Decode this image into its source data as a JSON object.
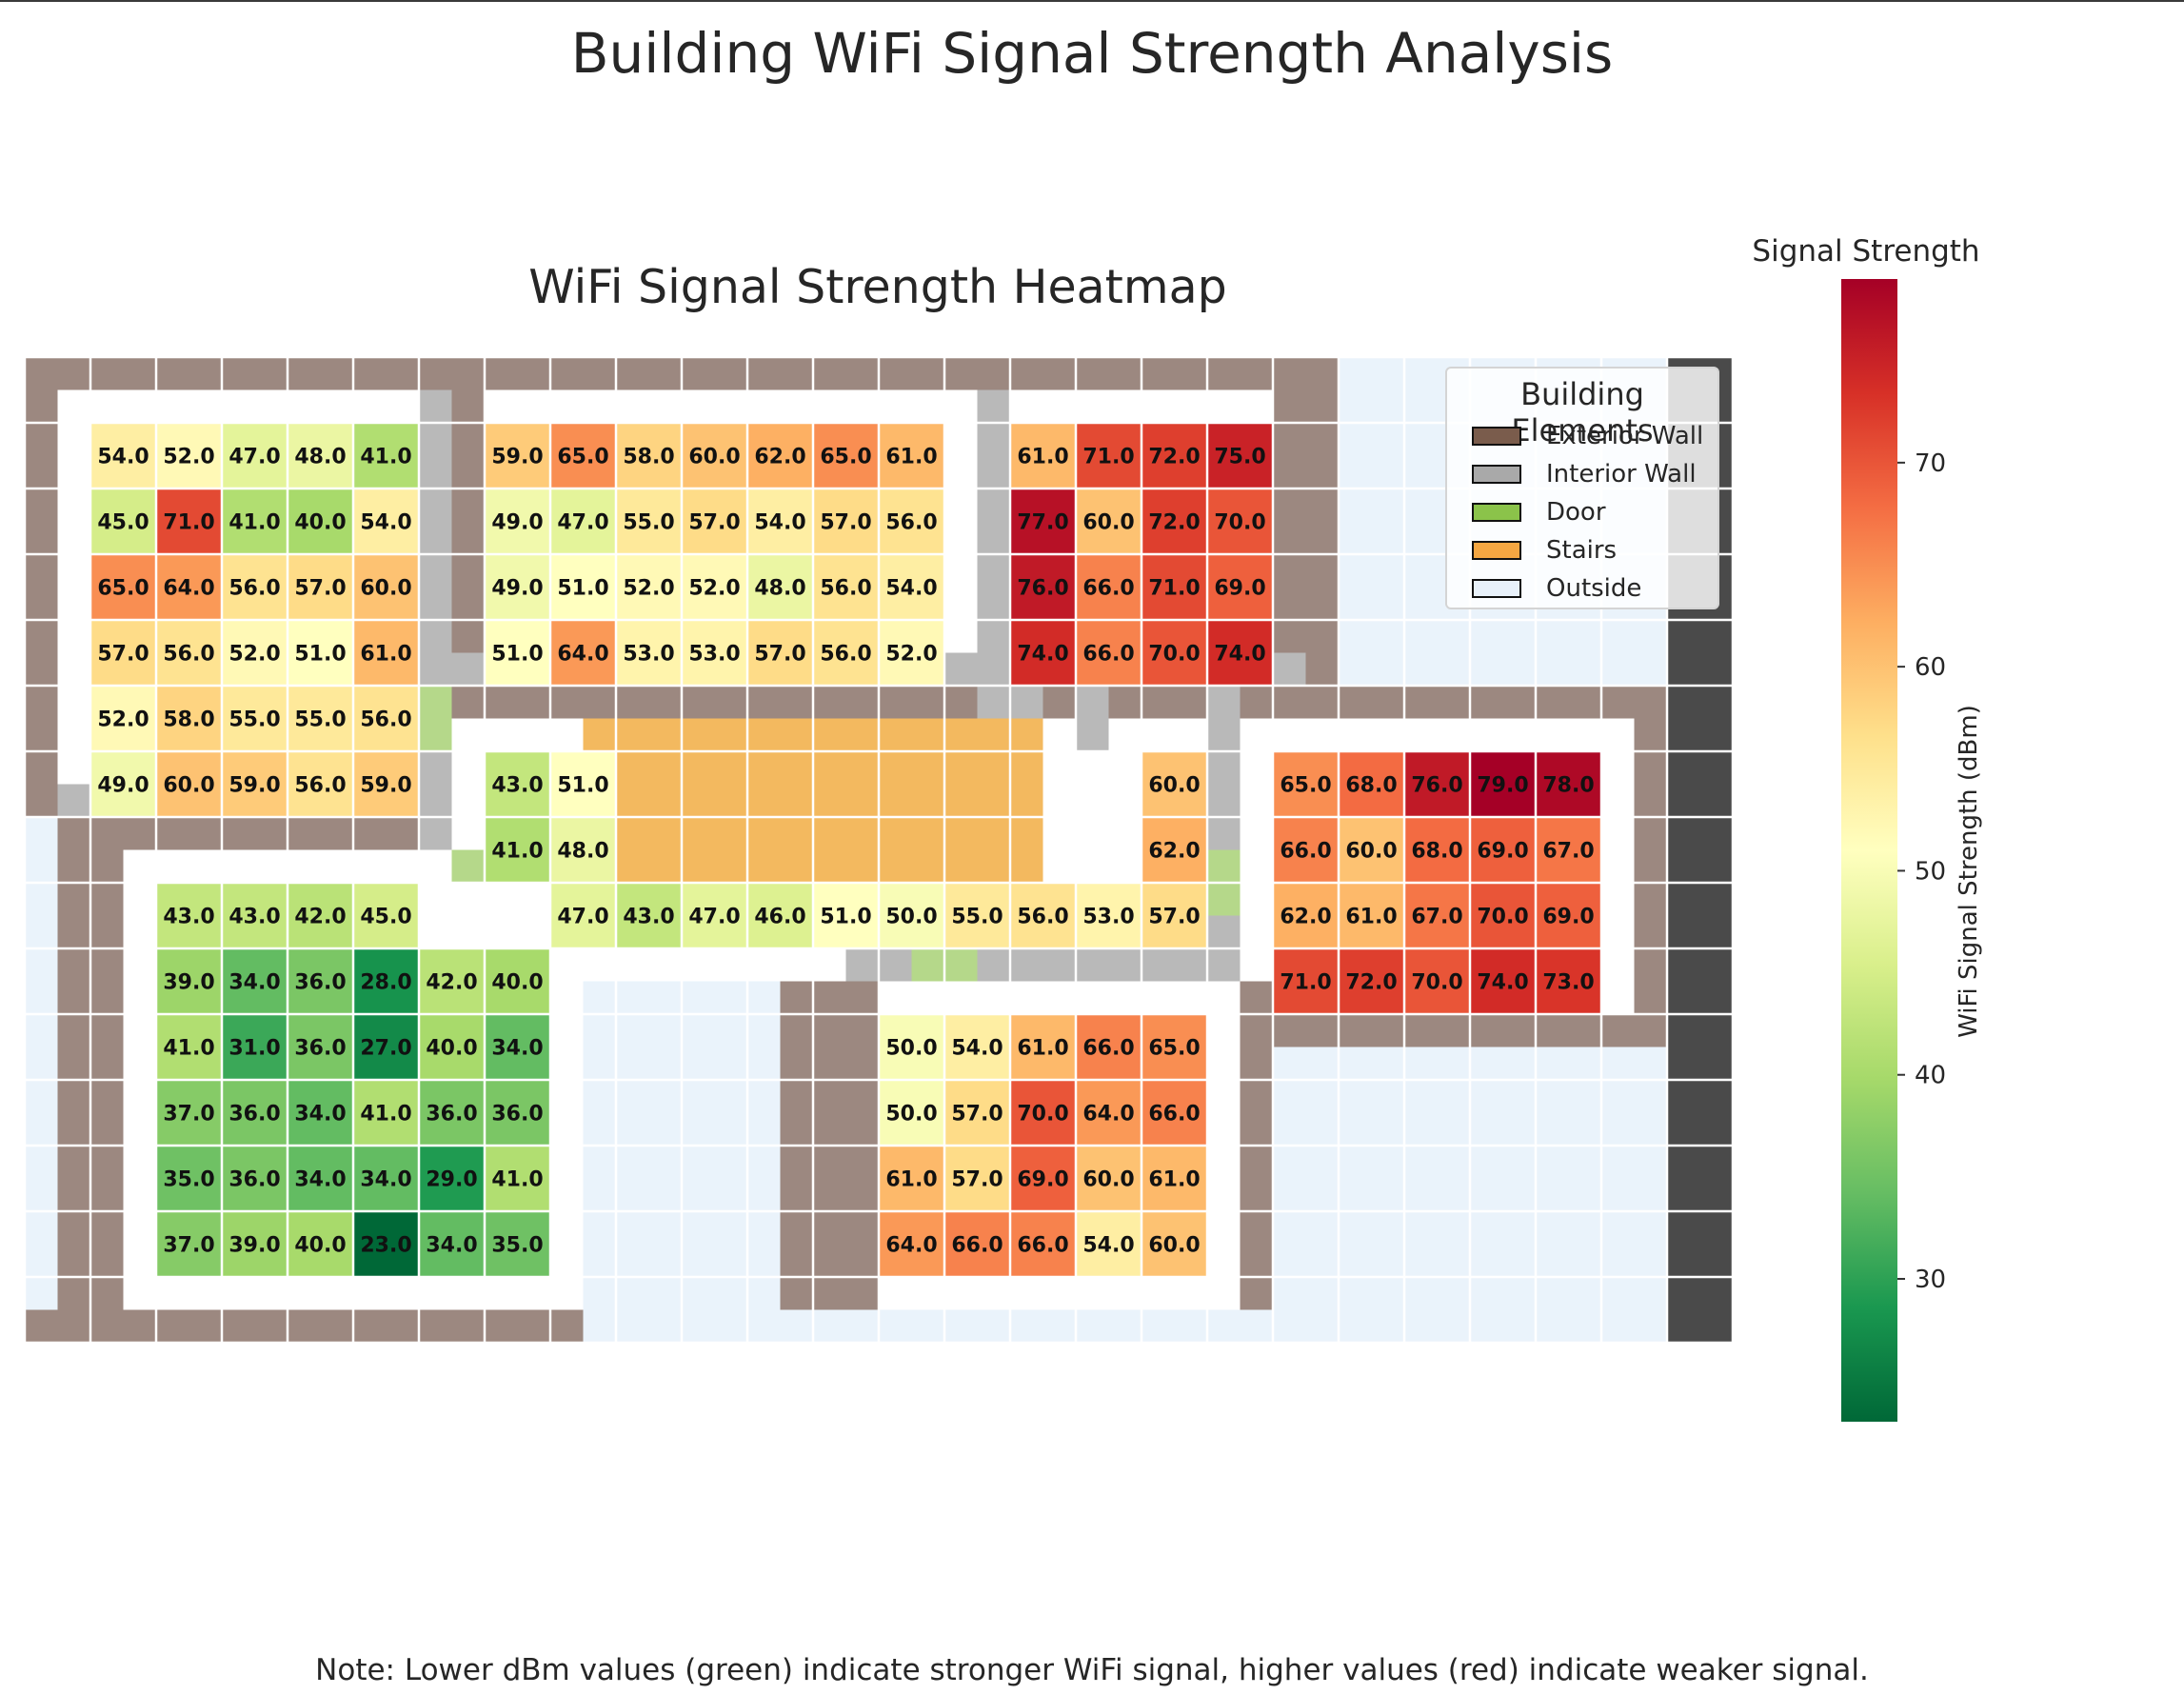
{
  "main_title": "Building WiFi Signal Strength Analysis",
  "footnote": "Note: Lower dBm values (green) indicate stronger WiFi signal, higher values (red) indicate weaker signal.",
  "colors": {
    "exterior_wall": "#9c8880",
    "exterior_wall_dark": "#4a4a4a",
    "interior_wall": "#b9b9b9",
    "door": "#b5d88a",
    "stairs": "#f3b95f",
    "outside": "#eaf3fb",
    "floor": "#ffffff"
  },
  "chart_data": {
    "type": "heatmap",
    "title": "WiFi Signal Strength Heatmap",
    "colormap": "RdYlGn_r",
    "vmin": 23,
    "vmax": 79,
    "colorbar": {
      "title": "Signal Strength",
      "label": "WiFi Signal Strength (dBm)",
      "ticks": [
        30,
        40,
        50,
        60,
        70
      ]
    },
    "legend": {
      "title": "Building Elements",
      "placement": "top-right",
      "items": [
        {
          "label": "Exterior Wall",
          "color": "#7a5c4c"
        },
        {
          "label": "Interior Wall",
          "color": "#a9a9a9"
        },
        {
          "label": "Door",
          "color": "#8bc34a"
        },
        {
          "label": "Stairs",
          "color": "#f5a742"
        },
        {
          "label": "Outside",
          "color": "#e8f1fa"
        }
      ]
    },
    "rooms": [
      {
        "name": "room-a",
        "col_start": 1,
        "row_start": 1,
        "values": [
          [
            54,
            52,
            47,
            48,
            41
          ],
          [
            45,
            71,
            41,
            40,
            54
          ],
          [
            65,
            64,
            56,
            57,
            60
          ],
          [
            57,
            56,
            52,
            51,
            61
          ],
          [
            52,
            58,
            55,
            55,
            56
          ],
          [
            49,
            60,
            59,
            56,
            59
          ]
        ]
      },
      {
        "name": "room-b",
        "col_start": 7,
        "row_start": 1,
        "values": [
          [
            59,
            65,
            58,
            60,
            62,
            65,
            61
          ],
          [
            49,
            47,
            55,
            57,
            54,
            57,
            56
          ],
          [
            49,
            51,
            52,
            52,
            48,
            56,
            54
          ],
          [
            51,
            64,
            53,
            53,
            57,
            56,
            52
          ]
        ]
      },
      {
        "name": "room-c",
        "col_start": 15,
        "row_start": 1,
        "values": [
          [
            61,
            71,
            72,
            75
          ],
          [
            77,
            60,
            72,
            70
          ],
          [
            76,
            66,
            71,
            69
          ],
          [
            74,
            66,
            70,
            74
          ]
        ]
      },
      {
        "name": "room-d",
        "col_start": 19,
        "row_start": 6,
        "values": [
          [
            65,
            68,
            76,
            79,
            78
          ],
          [
            66,
            60,
            68,
            69,
            67
          ],
          [
            62,
            61,
            67,
            70,
            69
          ],
          [
            71,
            72,
            70,
            74,
            73
          ]
        ]
      },
      {
        "name": "room-e",
        "col_start": 2,
        "row_start": 8,
        "values": [
          [
            43,
            43,
            42,
            45,
            null,
            null
          ],
          [
            39,
            34,
            36,
            28,
            42,
            40
          ],
          [
            41,
            31,
            36,
            27,
            40,
            34
          ],
          [
            37,
            36,
            34,
            41,
            36,
            36
          ],
          [
            35,
            36,
            34,
            34,
            29,
            41
          ],
          [
            37,
            39,
            40,
            23,
            34,
            35
          ]
        ]
      },
      {
        "name": "room-f",
        "col_start": 13,
        "row_start": 10,
        "values": [
          [
            50,
            54,
            61,
            66,
            65
          ],
          [
            50,
            57,
            70,
            64,
            66
          ],
          [
            61,
            57,
            69,
            60,
            61
          ],
          [
            64,
            66,
            66,
            54,
            60
          ]
        ]
      },
      {
        "name": "corridor",
        "col_start": 7,
        "row_start": 6,
        "values": [
          [
            43,
            51,
            null,
            null,
            null,
            null,
            null,
            null,
            null,
            null,
            null,
            null,
            null,
            null,
            null
          ],
          [
            41,
            48,
            null,
            null,
            null,
            null,
            null,
            null,
            null,
            null,
            null,
            null,
            null,
            null,
            62
          ],
          [
            null,
            47,
            43,
            47,
            46,
            51,
            50,
            55,
            56,
            53,
            57
          ],
          [
            null,
            null,
            null,
            null,
            null,
            null,
            null,
            null,
            null,
            null,
            null,
            null,
            null,
            null,
            null
          ]
        ],
        "extra_cells": [
          {
            "col": 17,
            "row": 6,
            "value": 60
          },
          {
            "col": 17,
            "row": 7,
            "value": 62
          }
        ]
      }
    ]
  }
}
